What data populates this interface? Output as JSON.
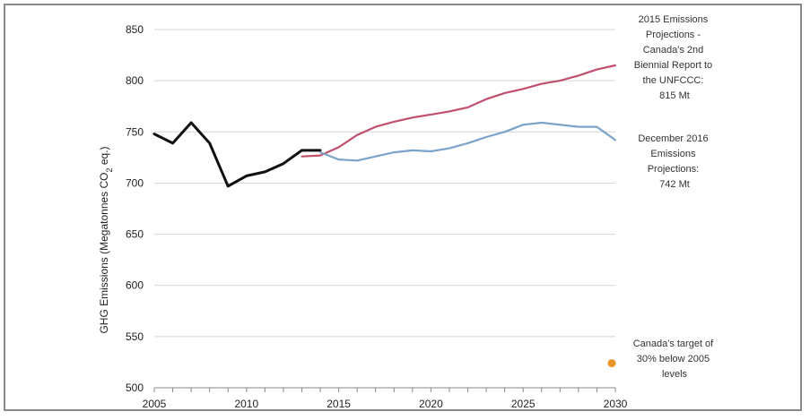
{
  "chart_data": {
    "type": "line",
    "xlim": [
      2005,
      2030
    ],
    "ylim": [
      500,
      850
    ],
    "y_ticks": [
      500,
      550,
      600,
      650,
      700,
      750,
      800,
      850
    ],
    "x_ticks": [
      2005,
      2010,
      2015,
      2020,
      2025,
      2030
    ],
    "x_tick_labels": [
      "2005",
      "2010",
      "2015",
      "2020",
      "2025",
      "2030"
    ],
    "y_tick_labels": [
      "500",
      "550",
      "600",
      "650",
      "700",
      "750",
      "800",
      "850"
    ],
    "ylabel_main": "GHG Emissions  (Megatonnes CO",
    "ylabel_sub": "2",
    "ylabel_end": " eq.)",
    "grid": true,
    "series": [
      {
        "color": "#111111",
        "x": [
          2005,
          2006,
          2007,
          2008,
          2009,
          2010,
          2011,
          2012,
          2013,
          2014
        ],
        "y": [
          748,
          739,
          759,
          739,
          697,
          707,
          711,
          719,
          732,
          732
        ]
      },
      {
        "color": "#c0506e",
        "x": [
          2013,
          2014,
          2015,
          2016,
          2017,
          2018,
          2019,
          2020,
          2021,
          2022,
          2023,
          2024,
          2025,
          2026,
          2027,
          2028,
          2029,
          2030
        ],
        "y": [
          726,
          727,
          735,
          747,
          755,
          760,
          764,
          767,
          770,
          774,
          782,
          788,
          792,
          797,
          800,
          805,
          811,
          815
        ]
      },
      {
        "color": "#7aa3c9",
        "x": [
          2014,
          2015,
          2016,
          2017,
          2018,
          2019,
          2020,
          2021,
          2022,
          2023,
          2024,
          2025,
          2026,
          2027,
          2028,
          2029,
          2030
        ],
        "y": [
          730,
          723,
          722,
          726,
          730,
          732,
          731,
          734,
          739,
          745,
          750,
          757,
          759,
          757,
          755,
          755,
          742
        ]
      },
      {
        "type": "scatter",
        "color": "#e8962a",
        "x": [
          2030
        ],
        "y": [
          524
        ]
      }
    ],
    "annotations": {
      "projection_2015": [
        "2015 Emissions",
        "Projections -",
        "Canada's 2nd",
        "Biennial Report to",
        "the UNFCCC:",
        "815 Mt"
      ],
      "projection_2016": [
        "December 2016",
        "Emissions",
        "Projections:",
        "742 Mt"
      ],
      "target": [
        "Canada's target of",
        "30% below 2005",
        "levels"
      ]
    }
  }
}
